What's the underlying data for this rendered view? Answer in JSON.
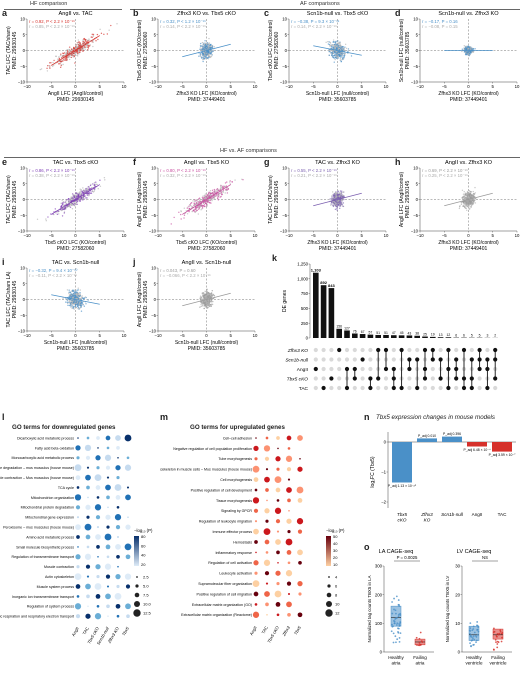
{
  "sections": {
    "hf": "HF comparison",
    "af": "AF comparisons",
    "hfaf": "HF vs. AF comparisons"
  },
  "letters": [
    "a",
    "b",
    "c",
    "d",
    "e",
    "f",
    "g",
    "h",
    "i",
    "j",
    "k",
    "l",
    "m",
    "n",
    "o"
  ],
  "colors": {
    "red": "#d6312b",
    "blue": "#4a90c8",
    "purple": "#7d3cb5",
    "pink": "#c94fa0",
    "gray": "#9a9a9a",
    "violet": "#7b5fb0"
  },
  "scatter_panels": [
    {
      "key": "a",
      "title": "AngII vs. TAC",
      "stat1": "r = 0.92, P < 2.2 × 10⁻¹⁶",
      "stat2": "r = 0.85, P < 2.2 × 10⁻¹⁶",
      "ylabel": "TAC LFC (TAC/sham)",
      "ypmid": "PMID: 29930145",
      "xlabel": "AngII LFC (AngII/control)",
      "xpmid": "PMID: 29930145",
      "color": "red",
      "spread": "wide"
    },
    {
      "key": "b",
      "title": "Zfhx3 KO vs. Tbx5 cKO",
      "stat1": "r = 0.32, P < 1.2 × 10⁻¹⁶",
      "stat2": "r = 0.14, P < 2.2 × 10⁻¹⁶",
      "ylabel": "Tbx5 cKO LFC (KO/control)",
      "ypmid": "PMID: 27582060",
      "xlabel": "Zfhx3 KO LFC (KO/control)",
      "xpmid": "PMID: 37449401",
      "color": "blue",
      "spread": "narrow"
    },
    {
      "key": "c",
      "title": "Scn1b-null vs. Tbx5 cKO",
      "stat1": "r = −0.38, P = 9.3 × 10⁻¹⁵",
      "stat2": "r = 0.14, P < 2.2 × 10⁻¹⁶",
      "ylabel": "Tbx5 cKO LFC (KO/control)",
      "ypmid": "PMID: 27582060",
      "xlabel": "Scn1b-null LFC (null/control)",
      "xpmid": "PMID: 35603785",
      "color": "blue",
      "spread": "tilt"
    },
    {
      "key": "d",
      "title": "Scn1b-null vs. Zfhx3 KO",
      "stat1": "r = −0.17, P = 0.16",
      "stat2": "r = −0.08, P = 0.15",
      "ylabel": "Scn1b-null LFC (null/control)",
      "ypmid": "PMID: 35603785",
      "xlabel": "Zfhx3 KO LFC (KO/control)",
      "xpmid": "PMID: 37449401",
      "color": "blue",
      "spread": "tiny"
    },
    {
      "key": "e",
      "title": "TAC vs. Tbx5 cKO",
      "stat1": "r = 0.86, P < 2.2 × 10⁻¹⁶",
      "stat2": "r = 0.38, P < 2.2 × 10⁻¹⁶",
      "ylabel": "TAC LFC (TAC/sham)",
      "ypmid": "PMID: 29930145",
      "xlabel": "Tbx5 cKO LFC (KO/control)",
      "xpmid": "PMID: 27582060",
      "color": "purple",
      "spread": "wide"
    },
    {
      "key": "f",
      "title": "AngII vs. Tbx5 KO",
      "stat1": "r = 0.80, P < 2.2 × 10⁻¹⁶",
      "stat2": "r = 0.32, P < 2.2 × 10⁻¹⁶",
      "ylabel": "AngII LFC (AngII/control)",
      "ypmid": "PMID: 29930145",
      "xlabel": "Tbx5 cKO LFC (KO/control)",
      "xpmid": "PMID: 27582060",
      "color": "pink",
      "spread": "wide"
    },
    {
      "key": "g",
      "title": "TAC vs. Zfhx3 KO",
      "stat1": "r = 0.55, P < 2.2 × 10⁻¹⁶",
      "stat2": "r = 0.21, P < 2.2 × 10⁻¹⁶",
      "ylabel": "TAC LFC (TAC/sham)",
      "ypmid": "PMID: 29930145",
      "xlabel": "Zfhx3 KO LFC (KO/control)",
      "xpmid": "PMID: 37449401",
      "color": "violet",
      "spread": "narrow"
    },
    {
      "key": "h",
      "title": "AngII vs. Zfhx3 KO",
      "stat1": "r = 0.69, P < 2.2 × 10⁻¹⁶",
      "stat2": "r = 0.25, P < 2.2 × 10⁻¹⁶",
      "ylabel": "AngII LFC (AngII/control)",
      "ypmid": "PMID: 29930145",
      "xlabel": "Zfhx3 KO LFC (KO/control)",
      "xpmid": "PMID: 37449401",
      "color": "gray",
      "spread": "narrow"
    },
    {
      "key": "i",
      "title": "TAC vs. Scn1b-null",
      "stat1": "r = −0.32, P = 9.4 × 10⁻¹⁰",
      "stat2": "r = −0.11, P < 2.2 × 10⁻¹⁶",
      "ylabel": "TAC LFC (TAC/sham LA)",
      "ypmid": "PMID: 29930145",
      "xlabel": "Scn1b-null LFC (null/control)",
      "xpmid": "PMID: 35603785",
      "color": "blue",
      "spread": "tilt"
    },
    {
      "key": "j",
      "title": "AngII vs. Scn1b-null",
      "stat1": "r = 0.043, P = 0.60",
      "stat2": "r = −0.066, P < 2.2 × 10⁻¹⁶",
      "ylabel": "AngII LFC (AngII/control)",
      "ypmid": "PMID: 29930145",
      "xlabel": "Scn1b-null LFC (null/control)",
      "xpmid": "PMID: 35603785",
      "color": "gray",
      "spread": "narrow"
    }
  ],
  "axis_ticks": [
    "−10",
    "−5",
    "0",
    "5",
    "10"
  ],
  "upset": {
    "ylabel": "DE genes",
    "yticks": [
      "0",
      "250",
      "500",
      "750",
      "1,000",
      "1,250"
    ],
    "top_labels": [
      "1,103",
      "892",
      "843"
    ],
    "values": [
      1103,
      892,
      843,
      156,
      127,
      76,
      67,
      57,
      51,
      51,
      47,
      45,
      43,
      38,
      25,
      19,
      13,
      12,
      6,
      6,
      5,
      5,
      3,
      2
    ],
    "small_labels": [
      "156",
      "127",
      "76",
      "67",
      "57",
      "51",
      "51",
      "47",
      "45",
      "43",
      "38",
      "25",
      "19",
      "13",
      "12",
      "6",
      "6",
      "5",
      "5",
      "3",
      "2"
    ],
    "sets": [
      "Zfhx3 KO",
      "Scn1b-null",
      "AngII",
      "Tbx5 cKO",
      "TAC"
    ]
  },
  "go_down": {
    "title": "GO terms for downregulated genes",
    "terms": [
      "Dicarboxylic acid metabolic process",
      "Fatty acid beta-oxidation",
      "Monocarboxylic acid metabolic process",
      "Valine, leucine and isoleucine degradation – mus musculus (house mouse)",
      "Cardiac muscle contraction – Mus musculus (house mouse)",
      "TCA cycle",
      "Mitochondrion organization",
      "Mitochondrial protein degradation",
      "Mitochondrial gene expression",
      "Peroxisome – mus musculus (house mouse)",
      "Amino acid metabolic process",
      "Small molecule biosynthetic process",
      "Regulation of transmembrane transport",
      "Muscle contraction",
      "Actin cytoskeleton",
      "Muscle system process",
      "Inorganic ion transmembrane transport",
      "Regulation of system process",
      "Aerobic respiration and respiratory electron transport"
    ],
    "cols": [
      "AngII",
      "TAC",
      "Tbx5 cKO",
      "Scn1b-null",
      "Zfhx3 KO",
      "Tbx5"
    ],
    "legend_title": "−log₁₀ (P)",
    "legend_color_ticks": [
      "80",
      "60",
      "40",
      "20"
    ],
    "legend_size": [
      "2.5",
      "5.0",
      "7.5",
      "10.0",
      "12.5"
    ]
  },
  "go_up": {
    "title": "GO terms for upregulated genes",
    "terms": [
      "Cell–cell adhesion",
      "Negative regulation of cell population proliferation",
      "Tube morphogenesis",
      "Cytoskeleton in muscle cells – Mus musculus (house mouse)",
      "Cell morphogenesis",
      "Positive regulation of cell development",
      "Tissue morphogenesis",
      "Signaling by GPCR",
      "Regulation of leukocyte migration",
      "Immune effector process",
      "Hemostasis",
      "Inflammatory response",
      "Regulation of cell activation",
      "Leukocyte activation",
      "Supramolecular fiber organization",
      "Positive regulation of cell migration",
      "Extracellular matrix organization (GO)",
      "Extracellular matrix organization (Reactome)"
    ],
    "cols": [
      "AngII",
      "TAC",
      "Tbx5 cKO",
      "Zfhx3",
      "Tbx5"
    ],
    "legend_title": "−log₁₀ (P)",
    "legend_color_ticks": [
      "50",
      "40",
      "30",
      "20",
      "10"
    ],
    "legend_size": [
      "4",
      "6",
      "8",
      "10",
      "12"
    ]
  },
  "panel_n": {
    "title": "Tbx5 expression changes in mouse models",
    "ylabel": "log₂FC (Tbx5)",
    "yticks": [
      "0",
      "−1",
      "−2"
    ],
    "categories": [
      "Tbx5 cKO",
      "Zfhx3 KO",
      "Scn1b-null",
      "AngII",
      "TAC"
    ],
    "values": [
      -1.35,
      0.12,
      0.18,
      -0.15,
      -0.32
    ],
    "colors": [
      "#4a90c8",
      "#4a90c8",
      "#4a90c8",
      "#d6312b",
      "#d6312b"
    ],
    "pvals": [
      "P_adj 1.13 × 10⁻²⁰",
      "P_adj 0.010",
      "P_adj 0.396",
      "P_adj 6.48 × 10⁻⁴",
      "P_adj 3.59 × 10⁻⁷"
    ]
  },
  "panel_o": {
    "la": {
      "title": "LA CAGE-seq",
      "ylabel": "Normalized tag counts TBX5 in LA",
      "pval": "P = 0.0025",
      "groups": [
        "Healthy atria",
        "Failing atria"
      ],
      "yticks": [
        "0",
        "100",
        "200",
        "300"
      ]
    },
    "lv": {
      "title": "LV CAGE-seq",
      "ylabel": "Normalized tag counts TBX5 in LV",
      "pval": "NS",
      "groups": [
        "Healthy ventricle",
        "Failing ventricle"
      ],
      "yticks": [
        "0",
        "10",
        "20",
        "30"
      ]
    }
  }
}
